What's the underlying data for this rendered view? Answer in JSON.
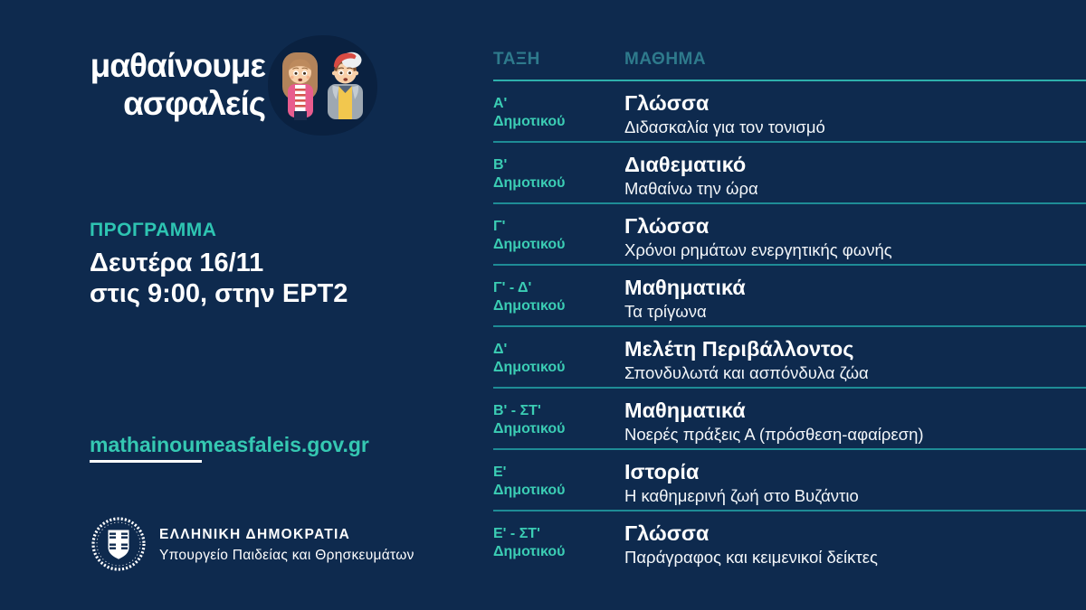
{
  "colors": {
    "background": "#0E2A4E",
    "accent_teal": "#35C8B2",
    "muted_header_teal": "#2E7A8C",
    "divider_teal": "#1E8C96",
    "header_divider_teal": "#2EB0AC",
    "blob_navy": "#0A2140",
    "white": "#FFFFFF"
  },
  "logo": {
    "line1": "μαθαίνουμε",
    "line2": "ασφαλείς",
    "illustration": "two-kids-girl-and-boy"
  },
  "program": {
    "label": "ΠΡΟΓΡΑΜΜΑ",
    "line1": "Δευτέρα 16/11",
    "line2": "στις 9:00, στην ΕΡΤ2"
  },
  "link": {
    "url": "mathainoumeasfaleis.gov.gr"
  },
  "government": {
    "emblem": "greek-republic-emblem",
    "title": "ΕΛΛΗΝΙΚΗ ΔΗΜΟΚΡΑΤΙΑ",
    "subtitle": "Υπουργείο Παιδείας και Θρησκευμάτων"
  },
  "schedule": {
    "columns": {
      "class": "ΤΑΞΗ",
      "subject": "ΜΑΘΗΜΑ"
    },
    "rows": [
      {
        "grade": "Α'",
        "level": "Δημοτικού",
        "subject": "Γλώσσα",
        "topic": "Διδασκαλία για τον τονισμό"
      },
      {
        "grade": "Β'",
        "level": "Δημοτικού",
        "subject": "Διαθεματικό",
        "topic": "Μαθαίνω την ώρα"
      },
      {
        "grade": "Γ'",
        "level": "Δημοτικού",
        "subject": "Γλώσσα",
        "topic": "Χρόνοι ρημάτων ενεργητικής φωνής"
      },
      {
        "grade": "Γ' - Δ'",
        "level": "Δημοτικού",
        "subject": "Μαθηματικά",
        "topic": "Τα τρίγωνα"
      },
      {
        "grade": "Δ'",
        "level": "Δημοτικού",
        "subject": "Μελέτη Περιβάλλοντος",
        "topic": "Σπονδυλωτά και ασπόνδυλα ζώα"
      },
      {
        "grade": "Β' - ΣΤ'",
        "level": "Δημοτικού",
        "subject": "Μαθηματικά",
        "topic": "Νοερές πράξεις Α (πρόσθεση-αφαίρεση)"
      },
      {
        "grade": "Ε'",
        "level": "Δημοτικού",
        "subject": "Ιστορία",
        "topic": "Η καθημερινή ζωή στο Βυζάντιο"
      },
      {
        "grade": "Ε' - ΣΤ'",
        "level": "Δημοτικού",
        "subject": "Γλώσσα",
        "topic": "Παράγραφος και κειμενικοί δείκτες"
      }
    ]
  }
}
